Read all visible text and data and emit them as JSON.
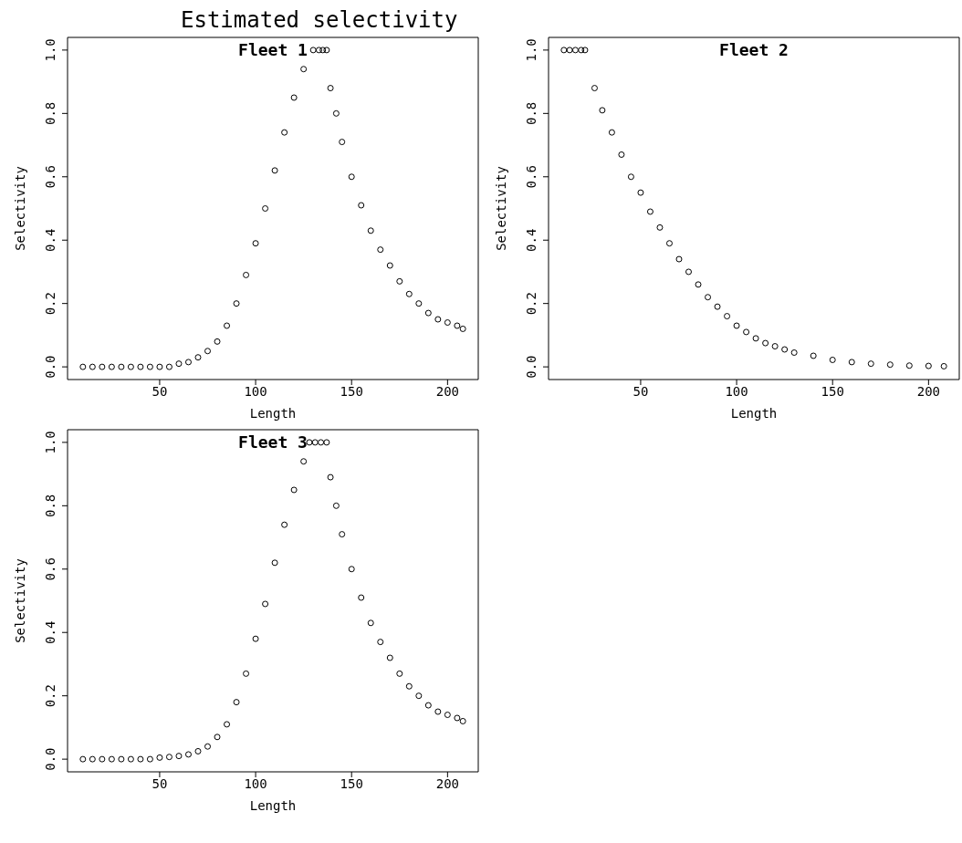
{
  "chart_data": [
    {
      "type": "other",
      "title": "Estimated selectivity"
    },
    {
      "type": "scatter",
      "title": "Fleet 1",
      "xlabel": "Length",
      "ylabel": "Selectivity",
      "marker": "circle",
      "grid": false,
      "legend": false,
      "xlim": [
        2,
        216
      ],
      "ylim": [
        -0.04,
        1.04
      ],
      "xticks": [
        50,
        100,
        150,
        200
      ],
      "yticks": [
        {
          "value": 0,
          "label": "0.0"
        },
        {
          "value": 0.2,
          "label": "0.2"
        },
        {
          "value": 0.4,
          "label": "0.4"
        },
        {
          "value": 0.6,
          "label": "0.6"
        },
        {
          "value": 0.8,
          "label": "0.8"
        },
        {
          "value": 1,
          "label": "1.0"
        }
      ],
      "series": [
        {
          "color": "#000000",
          "x": [
            10,
            15,
            20,
            25,
            30,
            35,
            40,
            45,
            50,
            55,
            60,
            65,
            70,
            75,
            80,
            85,
            90,
            95,
            100,
            105,
            110,
            115,
            120,
            125,
            130,
            133,
            135,
            137,
            139,
            142,
            145,
            150,
            155,
            160,
            165,
            170,
            175,
            180,
            185,
            190,
            195,
            200,
            205,
            208
          ],
          "values": [
            0,
            0,
            0,
            0,
            0,
            0,
            0,
            0,
            0,
            0,
            0.01,
            0.015,
            0.03,
            0.05,
            0.08,
            0.13,
            0.2,
            0.29,
            0.39,
            0.5,
            0.62,
            0.74,
            0.85,
            0.94,
            1,
            1,
            1,
            1,
            0.88,
            0.8,
            0.71,
            0.6,
            0.51,
            0.43,
            0.37,
            0.32,
            0.27,
            0.23,
            0.2,
            0.17,
            0.15,
            0.14,
            0.13,
            0.12
          ]
        }
      ]
    },
    {
      "type": "scatter",
      "title": "Fleet 2",
      "xlabel": "Length",
      "ylabel": "Selectivity",
      "marker": "circle",
      "grid": false,
      "legend": false,
      "xlim": [
        2,
        216
      ],
      "ylim": [
        -0.04,
        1.04
      ],
      "xticks": [
        50,
        100,
        150,
        200
      ],
      "yticks": [
        {
          "value": 0,
          "label": "0.0"
        },
        {
          "value": 0.2,
          "label": "0.2"
        },
        {
          "value": 0.4,
          "label": "0.4"
        },
        {
          "value": 0.6,
          "label": "0.6"
        },
        {
          "value": 0.8,
          "label": "0.8"
        },
        {
          "value": 1,
          "label": "1.0"
        }
      ],
      "series": [
        {
          "color": "#000000",
          "x": [
            10,
            13,
            16,
            19,
            21,
            26,
            30,
            35,
            40,
            45,
            50,
            55,
            60,
            65,
            70,
            75,
            80,
            85,
            90,
            95,
            100,
            105,
            110,
            115,
            120,
            125,
            130,
            140,
            150,
            160,
            170,
            180,
            190,
            200,
            208
          ],
          "values": [
            1,
            1,
            1,
            1,
            1,
            0.88,
            0.81,
            0.74,
            0.67,
            0.6,
            0.55,
            0.49,
            0.44,
            0.39,
            0.34,
            0.3,
            0.26,
            0.22,
            0.19,
            0.16,
            0.13,
            0.11,
            0.09,
            0.075,
            0.065,
            0.055,
            0.045,
            0.035,
            0.022,
            0.015,
            0.01,
            0.007,
            0.004,
            0.003,
            0.002
          ]
        }
      ]
    },
    {
      "type": "scatter",
      "title": "Fleet 3",
      "xlabel": "Length",
      "ylabel": "Selectivity",
      "marker": "circle",
      "grid": false,
      "legend": false,
      "xlim": [
        2,
        216
      ],
      "ylim": [
        -0.04,
        1.04
      ],
      "xticks": [
        50,
        100,
        150,
        200
      ],
      "yticks": [
        {
          "value": 0,
          "label": "0.0"
        },
        {
          "value": 0.2,
          "label": "0.2"
        },
        {
          "value": 0.4,
          "label": "0.4"
        },
        {
          "value": 0.6,
          "label": "0.6"
        },
        {
          "value": 0.8,
          "label": "0.8"
        },
        {
          "value": 1,
          "label": "1.0"
        }
      ],
      "series": [
        {
          "color": "#000000",
          "x": [
            10,
            15,
            20,
            25,
            30,
            35,
            40,
            45,
            50,
            55,
            60,
            65,
            70,
            75,
            80,
            85,
            90,
            95,
            100,
            105,
            110,
            115,
            120,
            125,
            128,
            131,
            134,
            137,
            139,
            142,
            145,
            150,
            155,
            160,
            165,
            170,
            175,
            180,
            185,
            190,
            195,
            200,
            205,
            208
          ],
          "values": [
            0,
            0,
            0,
            0,
            0,
            0,
            0,
            0,
            0.005,
            0.007,
            0.01,
            0.015,
            0.025,
            0.04,
            0.07,
            0.11,
            0.18,
            0.27,
            0.38,
            0.49,
            0.62,
            0.74,
            0.85,
            0.94,
            1,
            1,
            1,
            1,
            0.89,
            0.8,
            0.71,
            0.6,
            0.51,
            0.43,
            0.37,
            0.32,
            0.27,
            0.23,
            0.2,
            0.17,
            0.15,
            0.14,
            0.13,
            0.12
          ]
        }
      ]
    }
  ]
}
